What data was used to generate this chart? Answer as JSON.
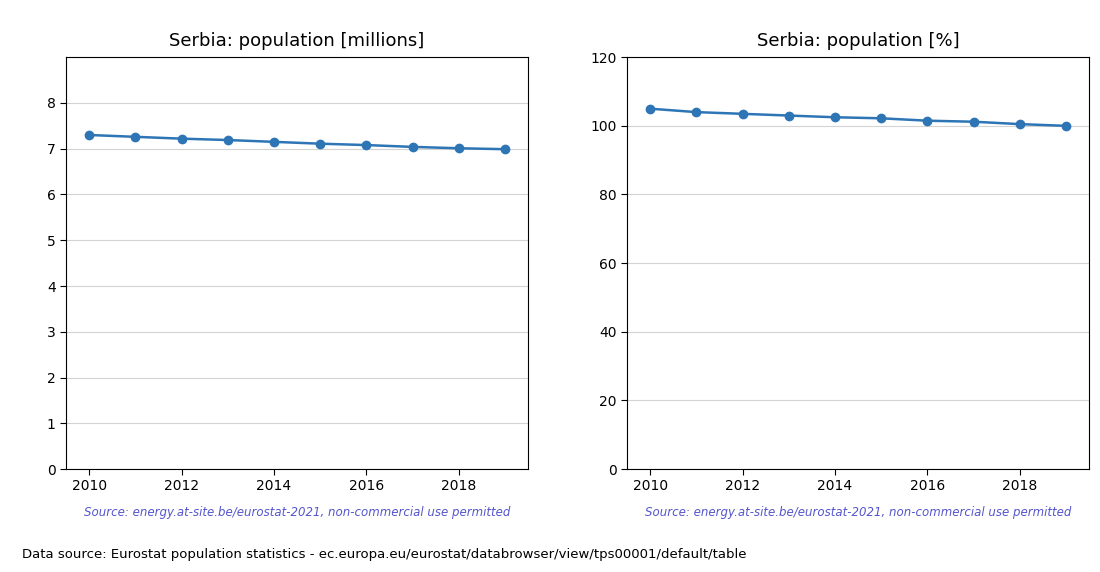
{
  "years": [
    2010,
    2011,
    2012,
    2013,
    2014,
    2015,
    2016,
    2017,
    2018,
    2019
  ],
  "pop_millions": [
    7.3,
    7.26,
    7.22,
    7.19,
    7.15,
    7.11,
    7.08,
    7.04,
    7.01,
    6.99
  ],
  "pop_percent": [
    105.0,
    104.0,
    103.5,
    103.0,
    102.5,
    102.2,
    101.5,
    101.2,
    100.5,
    100.0
  ],
  "title_left": "Serbia: population [millions]",
  "title_right": "Serbia: population [%]",
  "source_text": "Source: energy.at-site.be/eurostat-2021, non-commercial use permitted",
  "footer_text": "Data source: Eurostat population statistics - ec.europa.eu/eurostat/databrowser/view/tps00001/default/table",
  "line_color": "#2e75b6",
  "source_color": "#5555cc",
  "ylim_left": [
    0,
    9
  ],
  "ylim_right": [
    0,
    120
  ],
  "yticks_left": [
    0,
    1,
    2,
    3,
    4,
    5,
    6,
    7,
    8
  ],
  "yticks_right": [
    0,
    20,
    40,
    60,
    80,
    100,
    120
  ],
  "xticks": [
    2010,
    2012,
    2014,
    2016,
    2018
  ],
  "marker_size": 6,
  "line_width": 1.8,
  "figsize": [
    11.0,
    5.72
  ],
  "dpi": 100
}
